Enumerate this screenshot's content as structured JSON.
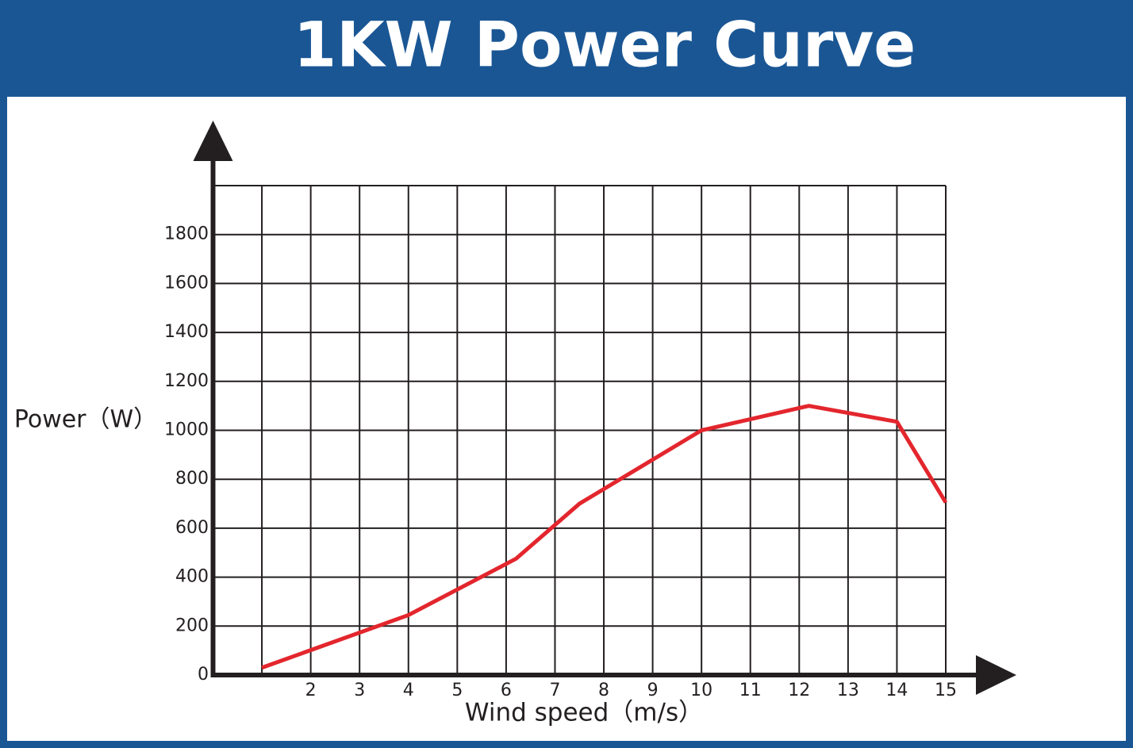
{
  "chart_data": {
    "type": "line",
    "title": "1KW Power Curve",
    "x_label": "Wind speed（m/s）",
    "y_label": "Power（W）",
    "x": [
      1,
      4,
      6.2,
      7.5,
      10,
      12.2,
      14,
      15
    ],
    "series": [
      {
        "name": "Power",
        "color": "#e3262d",
        "values": [
          30,
          245,
          475,
          700,
          1000,
          1100,
          1035,
          705
        ]
      }
    ],
    "xlim": [
      0,
      15
    ],
    "xticks": [
      2,
      3,
      4,
      5,
      6,
      7,
      8,
      9,
      10,
      11,
      12,
      13,
      14,
      15
    ],
    "ylim": [
      0,
      2000
    ],
    "yticks": [
      0,
      200,
      400,
      600,
      800,
      1000,
      1200,
      1400,
      1600,
      1800
    ],
    "grid": true
  }
}
